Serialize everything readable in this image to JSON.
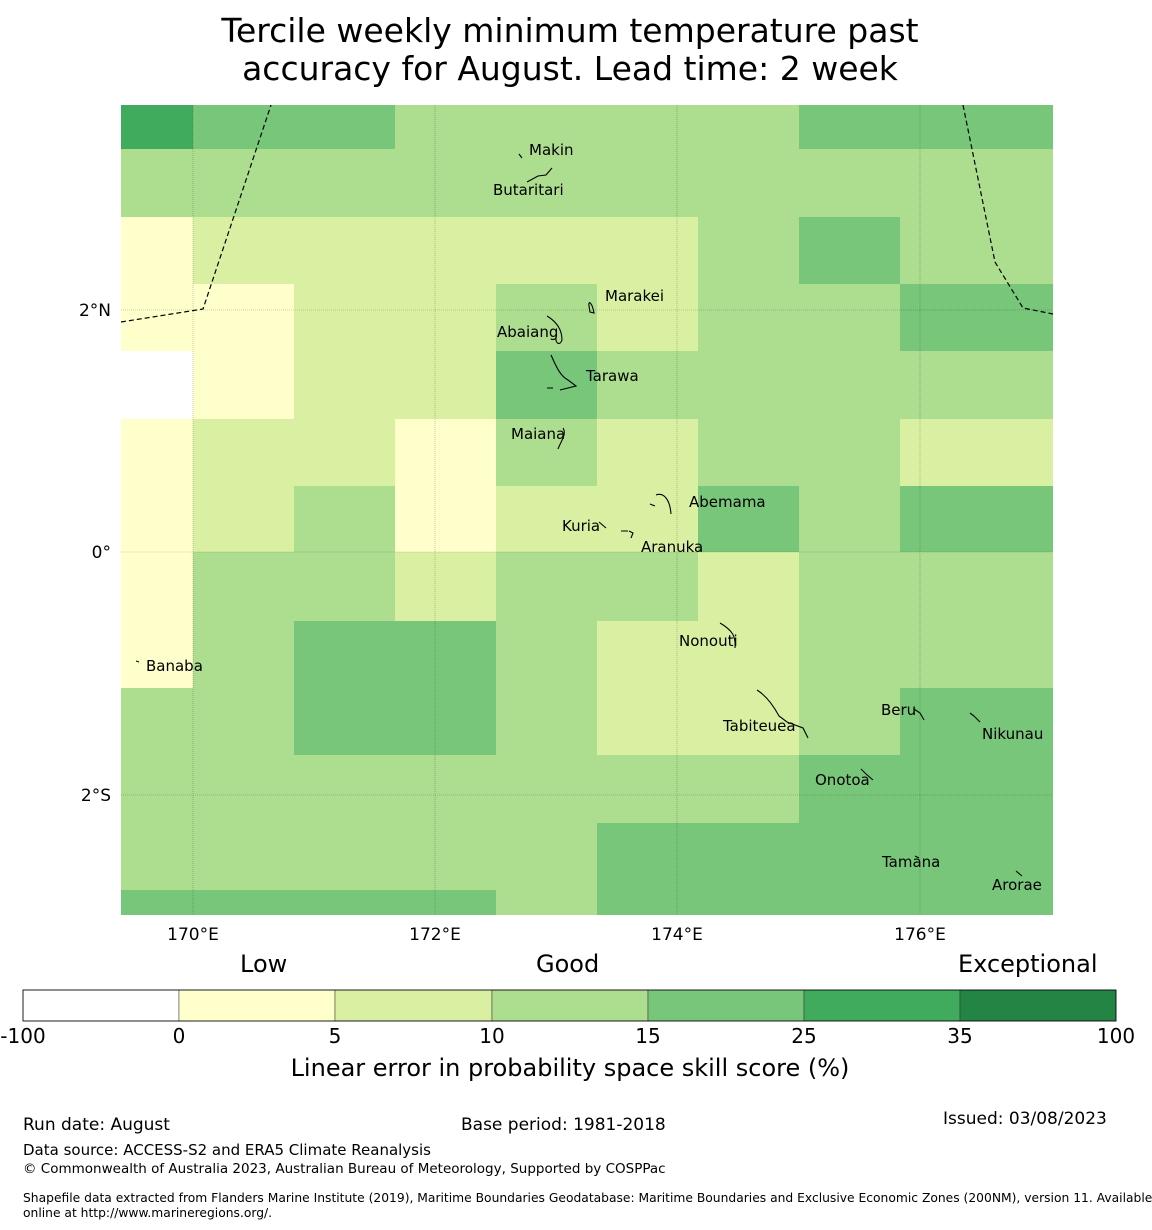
{
  "title": {
    "line1": "Tercile weekly minimum temperature past",
    "line2": "accuracy for August. Lead time: 2 week"
  },
  "map": {
    "lon_ticks": [
      "170°E",
      "172°E",
      "174°E",
      "176°E"
    ],
    "lat_ticks": [
      "2°N",
      "0°",
      "2°S"
    ],
    "places": [
      "Makin",
      "Butaritari",
      "Marakei",
      "Abaiang",
      "Tarawa",
      "Maiana",
      "Abemama",
      "Kuria",
      "Aranuka",
      "Banaba",
      "Nonouti",
      "Beru",
      "Nikunau",
      "Tabiteuea",
      "Onotoa",
      "Tamana",
      "Arorae"
    ],
    "grid_legend_classes": [
      "5 4 4 3 3 3 3 4 4",
      "3 3 3 3 3 3 3 3 3",
      "1 2 2 2 2 2 3 4 3",
      "1 1 2 2 3 2 3 3 4",
      "0 1 2 2 4 3 3 3 3",
      "1 2 2 1 3 2 3 3 2",
      "1 2 3 1 2 2 4 3 4",
      "1 3 3 2 3 3 2 3 3",
      "1 3 4 4 3 2 2 3 3",
      "3 3 4 4 3 2 2 3 4",
      "3 3 3 3 3 3 3 4 4",
      "3 3 3 3 3 4 4 4 4",
      "4 4 4 4 3 4 4 4 4"
    ],
    "colors": {
      "c0": "#ffffff",
      "c1": "#ffffcc",
      "c2": "#d9f0a3",
      "c3": "#addd8e",
      "c4": "#78c679",
      "c5": "#41ab5d",
      "c6": "#238443"
    }
  },
  "legend": {
    "low": "Low",
    "good": "Good",
    "exceptional": "Exceptional",
    "ticks": [
      "-100",
      "0",
      "5",
      "10",
      "15",
      "25",
      "35",
      "100"
    ],
    "colors": [
      "#ffffff",
      "#ffffcc",
      "#d9f0a3",
      "#addd8e",
      "#78c679",
      "#41ab5d",
      "#238443"
    ],
    "title": "Linear error in probability space skill score (%)"
  },
  "footer": {
    "run_date": "Run date: August",
    "base_period": "Base period: 1981-2018",
    "issued": "Issued: 03/08/2023",
    "data_source": "Data source: ACCESS-S2 and ERA5 Climate Reanalysis",
    "copyright": "© Commonwealth of Australia 2023, Australian Bureau of Meteorology, Supported by COSPPac",
    "shapefile_1": "Shapefile data extracted from Flanders Marine Institute (2019), Maritime Boundaries Geodatabase: Maritime Boundaries and Exclusive Economic Zones (200NM), version 11. Available",
    "shapefile_2": "online at http://www.marineregions.org/."
  }
}
